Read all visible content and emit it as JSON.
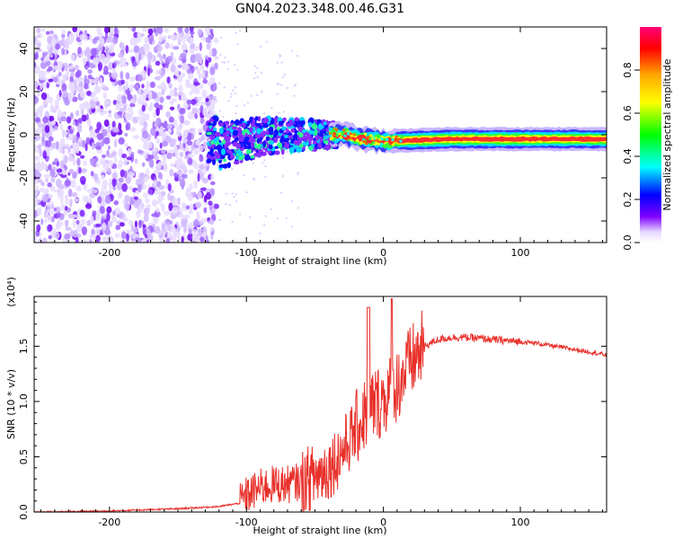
{
  "title": "GN04.2023.348.00.46.G31",
  "chart_data": [
    {
      "type": "heatmap",
      "xlabel": "Height of straight line (km)",
      "ylabel": "Frequency (Hz)",
      "xlim": [
        -255,
        163
      ],
      "ylim": [
        -50,
        50
      ],
      "x_ticks": [
        -200,
        -100,
        0,
        100
      ],
      "y_ticks": [
        -40,
        -20,
        0,
        20,
        40
      ],
      "colorbar": {
        "label": "Normalized spectral amplitude",
        "range": [
          0.0,
          1.0
        ],
        "ticks": [
          "0.0",
          "0.2",
          "0.4",
          "0.6",
          "0.8"
        ],
        "tick_values": [
          0.0,
          0.2,
          0.4,
          0.6,
          0.8
        ]
      },
      "ridge": {
        "description_free_samples": [
          {
            "x": -120,
            "y": -5
          },
          {
            "x": -90,
            "y": -1
          },
          {
            "x": -60,
            "y": 0
          },
          {
            "x": -30,
            "y": 0
          },
          {
            "x": -15,
            "y": -2
          },
          {
            "x": 0,
            "y": -3
          },
          {
            "x": 50,
            "y": -2
          },
          {
            "x": 100,
            "y": -2
          },
          {
            "x": 163,
            "y": -2
          }
        ]
      },
      "colors": [
        "#ff00ff",
        "#ff0000",
        "#ffa500",
        "#ffff00",
        "#00ff00",
        "#00ffff",
        "#0000ff",
        "#8000ff"
      ]
    },
    {
      "type": "line",
      "xlabel": "Height of straight line (km)",
      "ylabel": "SNR (10 * v/v)",
      "y_multiplier": "(x10⁴)",
      "xlim": [
        -255,
        163
      ],
      "ylim": [
        0,
        1.95
      ],
      "x_ticks": [
        -200,
        -100,
        0,
        100
      ],
      "y_ticks": [
        "0.0",
        "0.5",
        "1.0",
        "1.5"
      ],
      "y_tick_values": [
        0.0,
        0.5,
        1.0,
        1.5
      ],
      "series": [
        {
          "color": "#e8302a",
          "x": [
            -255,
            -200,
            -150,
            -120,
            -105,
            -100,
            -90,
            -80,
            -70,
            -60,
            -50,
            -40,
            -30,
            -20,
            -10,
            0,
            10,
            20,
            30,
            40,
            50,
            60,
            70,
            80,
            90,
            100,
            110,
            120,
            130,
            140,
            150,
            163
          ],
          "y": [
            0.0,
            0.01,
            0.03,
            0.05,
            0.08,
            0.15,
            0.22,
            0.25,
            0.25,
            0.28,
            0.32,
            0.4,
            0.55,
            0.75,
            0.95,
            1.02,
            1.15,
            1.35,
            1.5,
            1.56,
            1.58,
            1.58,
            1.57,
            1.56,
            1.55,
            1.54,
            1.53,
            1.51,
            1.49,
            1.47,
            1.45,
            1.42
          ]
        }
      ]
    }
  ]
}
